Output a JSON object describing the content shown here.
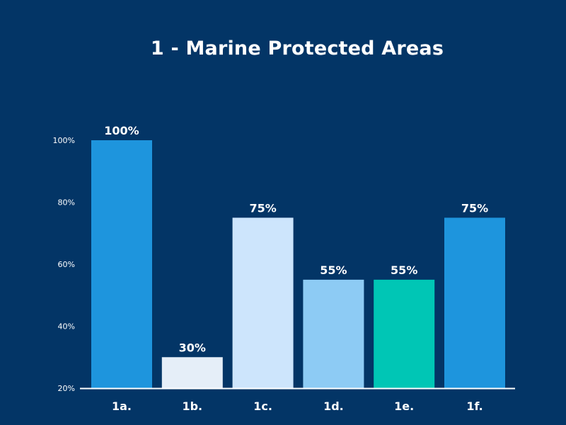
{
  "chart_data": {
    "type": "bar",
    "title": "1 - Marine Protected Areas",
    "xlabel": "",
    "ylabel": "",
    "categories": [
      "1a.",
      "1b.",
      "1c.",
      "1d.",
      "1e.",
      "1f."
    ],
    "values": [
      100,
      30,
      75,
      55,
      55,
      75
    ],
    "data_labels": [
      "100%",
      "30%",
      "75%",
      "55%",
      "55%",
      "75%"
    ],
    "bar_colors": [
      "#1e95dd",
      "#e5eef8",
      "#cde5fc",
      "#8dcbf4",
      "#00c6b5",
      "#1e95dd"
    ],
    "ylim": [
      20,
      100
    ],
    "yticks": [
      20,
      40,
      60,
      80,
      100
    ],
    "ytick_labels": [
      "20%",
      "40%",
      "60%",
      "80%",
      "100%"
    ],
    "grid": false,
    "legend": "none"
  },
  "colors": {
    "background": "#033566",
    "axis": "#ffffff",
    "text": "#ffffff"
  }
}
